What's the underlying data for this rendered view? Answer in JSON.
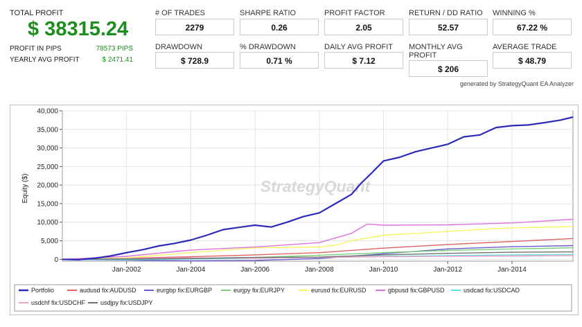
{
  "header": {
    "total_profit_label": "TOTAL PROFIT",
    "total_profit_value": "$ 38315.24",
    "profit_in_pips_label": "PROFIT IN PIPS",
    "profit_in_pips_value": "78573 PIPS",
    "yearly_avg_profit_label": "YEARLY AVG PROFIT",
    "yearly_avg_profit_value": "$ 2471.41"
  },
  "metrics": [
    {
      "label": "# OF TRADES",
      "value": "2279"
    },
    {
      "label": "SHARPE RATIO",
      "value": "0.26"
    },
    {
      "label": "PROFIT FACTOR",
      "value": "2.05"
    },
    {
      "label": "RETURN / DD RATIO",
      "value": "52.57"
    },
    {
      "label": "WINNING %",
      "value": "67.22 %"
    },
    {
      "label": "DRAWDOWN",
      "value": "$ 728.9"
    },
    {
      "label": "% DRAWDOWN",
      "value": "0.71 %"
    },
    {
      "label": "DAILY AVG PROFIT",
      "value": "$ 7.12"
    },
    {
      "label": "MONTHLY AVG\nPROFIT",
      "value": "$ 206"
    },
    {
      "label": "AVERAGE TRADE",
      "value": "$ 48.79"
    }
  ],
  "generated_by": "generated by StrategyQuant EA Analyzer",
  "watermark": "StrategyQuant",
  "chart_data": {
    "type": "line",
    "title": "",
    "xlabel": "",
    "ylabel": "Equity ($)",
    "xlim": [
      2000.0,
      2015.9
    ],
    "ylim": [
      -500,
      40000
    ],
    "y_ticks": [
      "0",
      "5,000",
      "10,000",
      "15,000",
      "20,000",
      "25,000",
      "30,000",
      "35,000",
      "40,000"
    ],
    "x_ticks": [
      "Jan-2002",
      "Jan-2004",
      "Jan-2006",
      "Jan-2008",
      "Jan-2010",
      "Jan-2012",
      "Jan-2014"
    ],
    "grid": true,
    "legend_position": "bottom",
    "series": [
      {
        "name": "Portfolio",
        "color": "#2b2bb8",
        "x": [
          2000.0,
          2000.5,
          2001.0,
          2001.5,
          2002.0,
          2002.5,
          2003.0,
          2003.5,
          2004.0,
          2004.5,
          2005.0,
          2005.5,
          2006.0,
          2006.5,
          2007.0,
          2007.5,
          2008.0,
          2008.5,
          2009.0,
          2009.3,
          2009.6,
          2010.0,
          2010.5,
          2011.0,
          2011.5,
          2012.0,
          2012.5,
          2013.0,
          2013.5,
          2014.0,
          2014.5,
          2015.0,
          2015.5,
          2015.9
        ],
        "y": [
          0,
          -100,
          300,
          900,
          1800,
          2600,
          3600,
          4300,
          5200,
          6500,
          8000,
          8600,
          9200,
          8700,
          10000,
          11500,
          12500,
          15000,
          17500,
          20500,
          23000,
          26500,
          27500,
          29000,
          30000,
          31000,
          33000,
          33500,
          35500,
          36000,
          36200,
          36800,
          37500,
          38315
        ]
      },
      {
        "name": "audusd fix:AUDUSD",
        "color": "#e06060",
        "x": [
          2000.0,
          2002.0,
          2004.0,
          2006.0,
          2008.0,
          2010.0,
          2012.0,
          2014.0,
          2015.9
        ],
        "y": [
          0,
          300,
          700,
          1200,
          1800,
          3000,
          4000,
          4800,
          5600
        ]
      },
      {
        "name": "eurgbp fix:EURGBP",
        "color": "#6a5acd",
        "x": [
          2000.0,
          2002.0,
          2004.0,
          2006.0,
          2008.0,
          2010.0,
          2012.0,
          2014.0,
          2015.9
        ],
        "y": [
          0,
          -200,
          -400,
          -300,
          200,
          1500,
          2800,
          3400,
          3700
        ]
      },
      {
        "name": "eurjpy fix:EURJPY",
        "color": "#7ad07a",
        "x": [
          2000.0,
          2002.0,
          2004.0,
          2006.0,
          2008.0,
          2010.0,
          2012.0,
          2014.0,
          2015.9
        ],
        "y": [
          0,
          100,
          300,
          500,
          1100,
          1800,
          2400,
          2800,
          3100
        ]
      },
      {
        "name": "eurusd fix:EURUSD",
        "color": "#f5f560",
        "x": [
          2000.0,
          2002.0,
          2004.0,
          2006.0,
          2008.0,
          2008.5,
          2009.0,
          2010.0,
          2012.0,
          2014.0,
          2015.9
        ],
        "y": [
          0,
          400,
          1800,
          3100,
          3300,
          3800,
          5000,
          6500,
          7500,
          8500,
          8800
        ]
      },
      {
        "name": "gbpusd fix:GBPUSD",
        "color": "#e070e0",
        "x": [
          2000.0,
          2002.0,
          2004.0,
          2006.0,
          2008.0,
          2009.0,
          2009.5,
          2010.0,
          2012.0,
          2014.0,
          2015.9
        ],
        "y": [
          0,
          800,
          2500,
          3300,
          4500,
          7000,
          9500,
          9200,
          9300,
          9800,
          10800
        ]
      },
      {
        "name": "usdcad fix:USDCAD",
        "color": "#60e0e0",
        "x": [
          2000.0,
          2002.0,
          2004.0,
          2006.0,
          2008.0,
          2010.0,
          2012.0,
          2014.0,
          2015.9
        ],
        "y": [
          0,
          -100,
          100,
          300,
          500,
          800,
          1000,
          1200,
          1300
        ]
      },
      {
        "name": "usdchf fix:USDCHF",
        "color": "#f0a0c8",
        "x": [
          2000.0,
          2002.0,
          2004.0,
          2006.0,
          2008.0,
          2010.0,
          2012.0,
          2014.0,
          2015.9
        ],
        "y": [
          0,
          200,
          400,
          300,
          500,
          700,
          800,
          900,
          1000
        ]
      },
      {
        "name": "usdjpy fix:USDJPY",
        "color": "#707070",
        "x": [
          2000.0,
          2002.0,
          2004.0,
          2006.0,
          2008.0,
          2010.0,
          2012.0,
          2014.0,
          2015.9
        ],
        "y": [
          0,
          100,
          200,
          500,
          600,
          1200,
          1600,
          1900,
          2000
        ]
      }
    ]
  }
}
